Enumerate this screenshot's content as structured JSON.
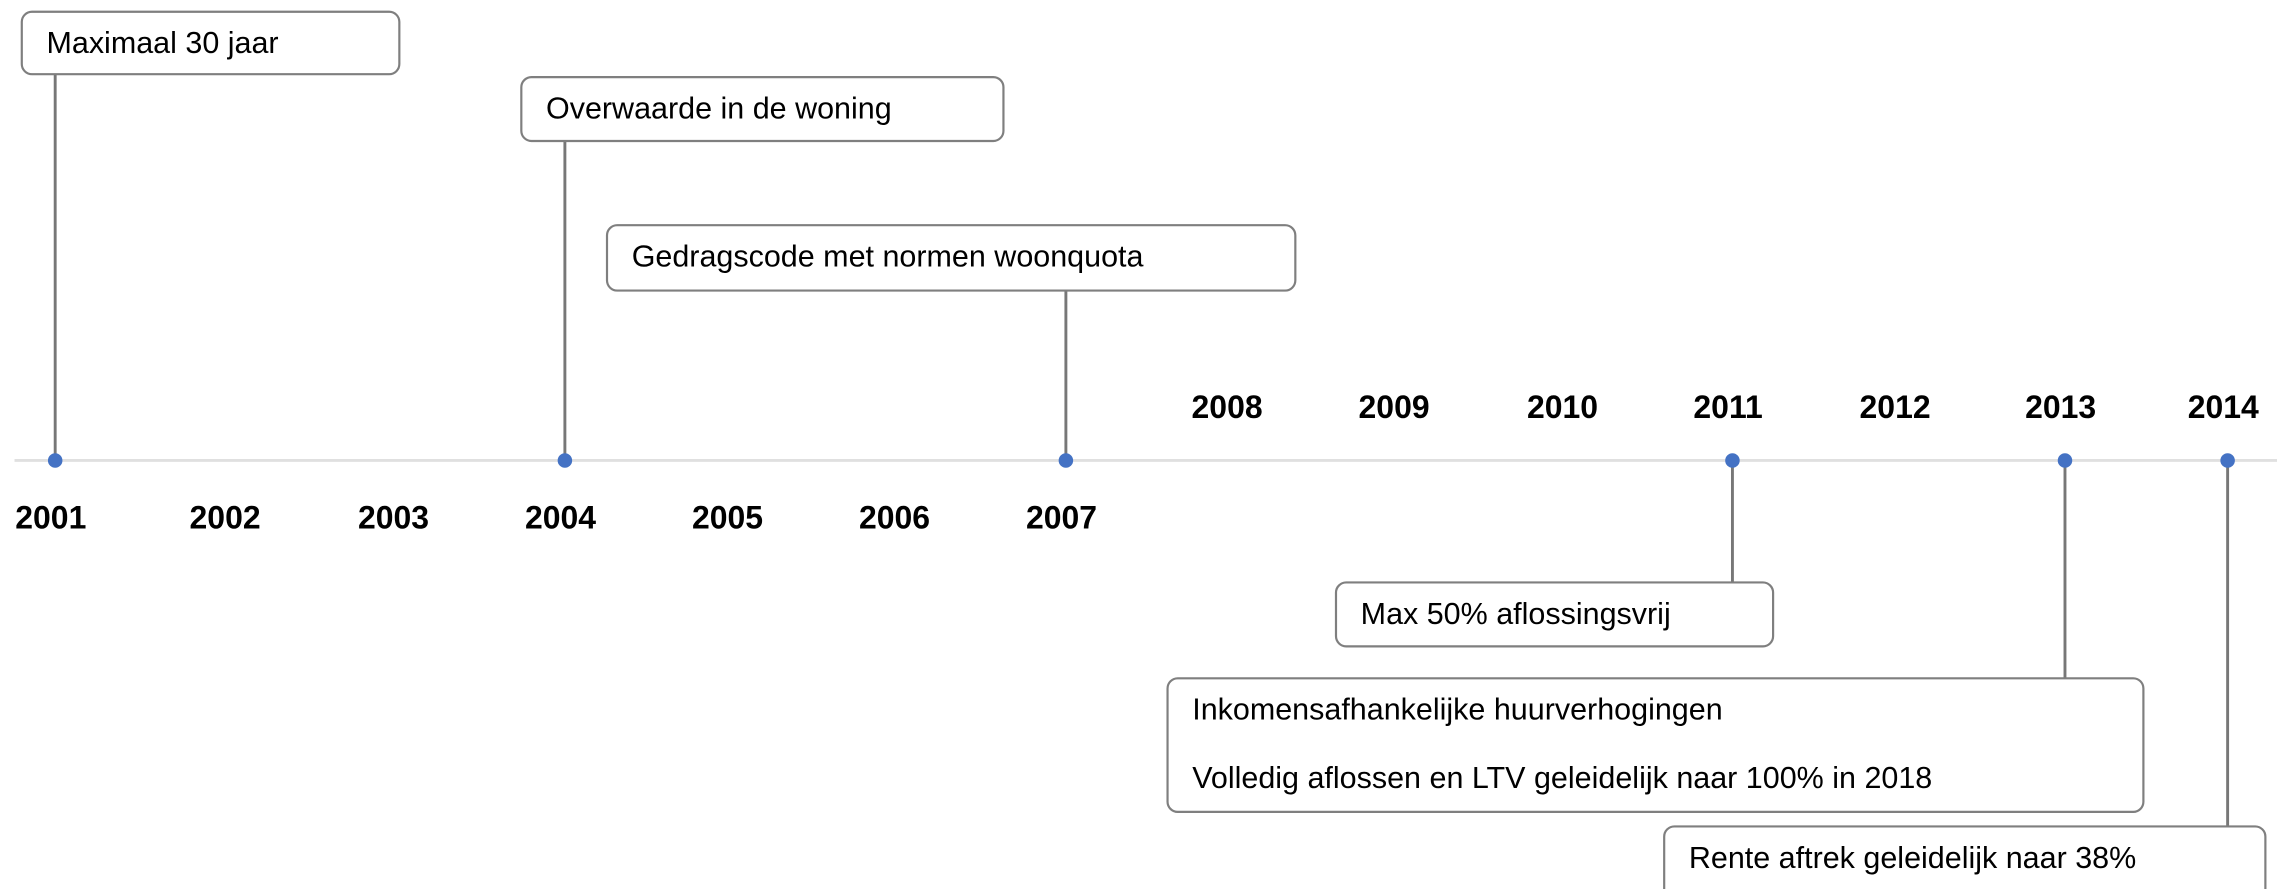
{
  "years": [
    "2001",
    "2002",
    "2003",
    "2004",
    "2005",
    "2006",
    "2007",
    "2008",
    "2009",
    "2010",
    "2011",
    "2012",
    "2013",
    "2014"
  ],
  "events": [
    {
      "year": "2001",
      "lines": [
        "Maximaal 30 jaar"
      ]
    },
    {
      "year": "2004",
      "lines": [
        "Overwaarde in de woning"
      ]
    },
    {
      "year": "2007",
      "lines": [
        "Gedragscode met normen woonquota"
      ]
    },
    {
      "year": "2011",
      "lines": [
        "Max 50% aflossingsvrij"
      ]
    },
    {
      "year": "2013",
      "lines": [
        "Inkomensafhankelijke huurverhogingen",
        "Volledig aflossen en LTV geleidelijk naar 100% in 2018"
      ]
    },
    {
      "year": "2014",
      "lines": [
        "Rente aftrek geleidelijk naar 38%"
      ]
    }
  ]
}
